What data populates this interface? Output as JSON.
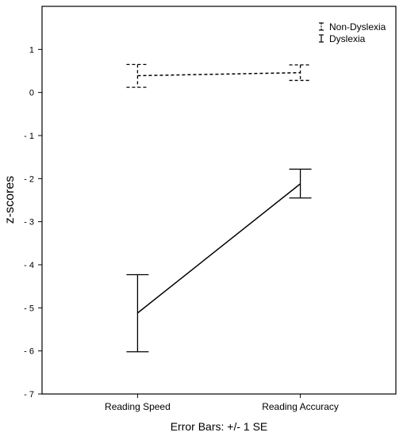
{
  "chart_data": {
    "type": "line",
    "title": "",
    "xlabel": "",
    "ylabel": "z-scores",
    "ylim": [
      -7,
      2
    ],
    "yticks": [
      {
        "value": 1,
        "label": "1"
      },
      {
        "value": 0,
        "label": "0"
      },
      {
        "value": -1,
        "label": "- 1"
      },
      {
        "value": -2,
        "label": "- 2"
      },
      {
        "value": -3,
        "label": "- 3"
      },
      {
        "value": -4,
        "label": "- 4"
      },
      {
        "value": -5,
        "label": "- 5"
      },
      {
        "value": -6,
        "label": "- 6"
      },
      {
        "value": -7,
        "label": "- 7"
      }
    ],
    "categories": [
      "Reading Speed",
      "Reading Accuracy"
    ],
    "series": [
      {
        "name": "Non-Dyslexia",
        "style": "dashed",
        "values": [
          0.39,
          0.46
        ],
        "error_low": [
          0.12,
          0.28
        ],
        "error_high": [
          0.65,
          0.64
        ]
      },
      {
        "name": "Dyslexia",
        "style": "solid",
        "values": [
          -5.12,
          -2.12
        ],
        "error_low": [
          -6.02,
          -2.45
        ],
        "error_high": [
          -4.23,
          -1.78
        ]
      }
    ],
    "legend_position": "top-right",
    "grid": false,
    "error_bar_note": "Error Bars: +/- 1 SE"
  }
}
